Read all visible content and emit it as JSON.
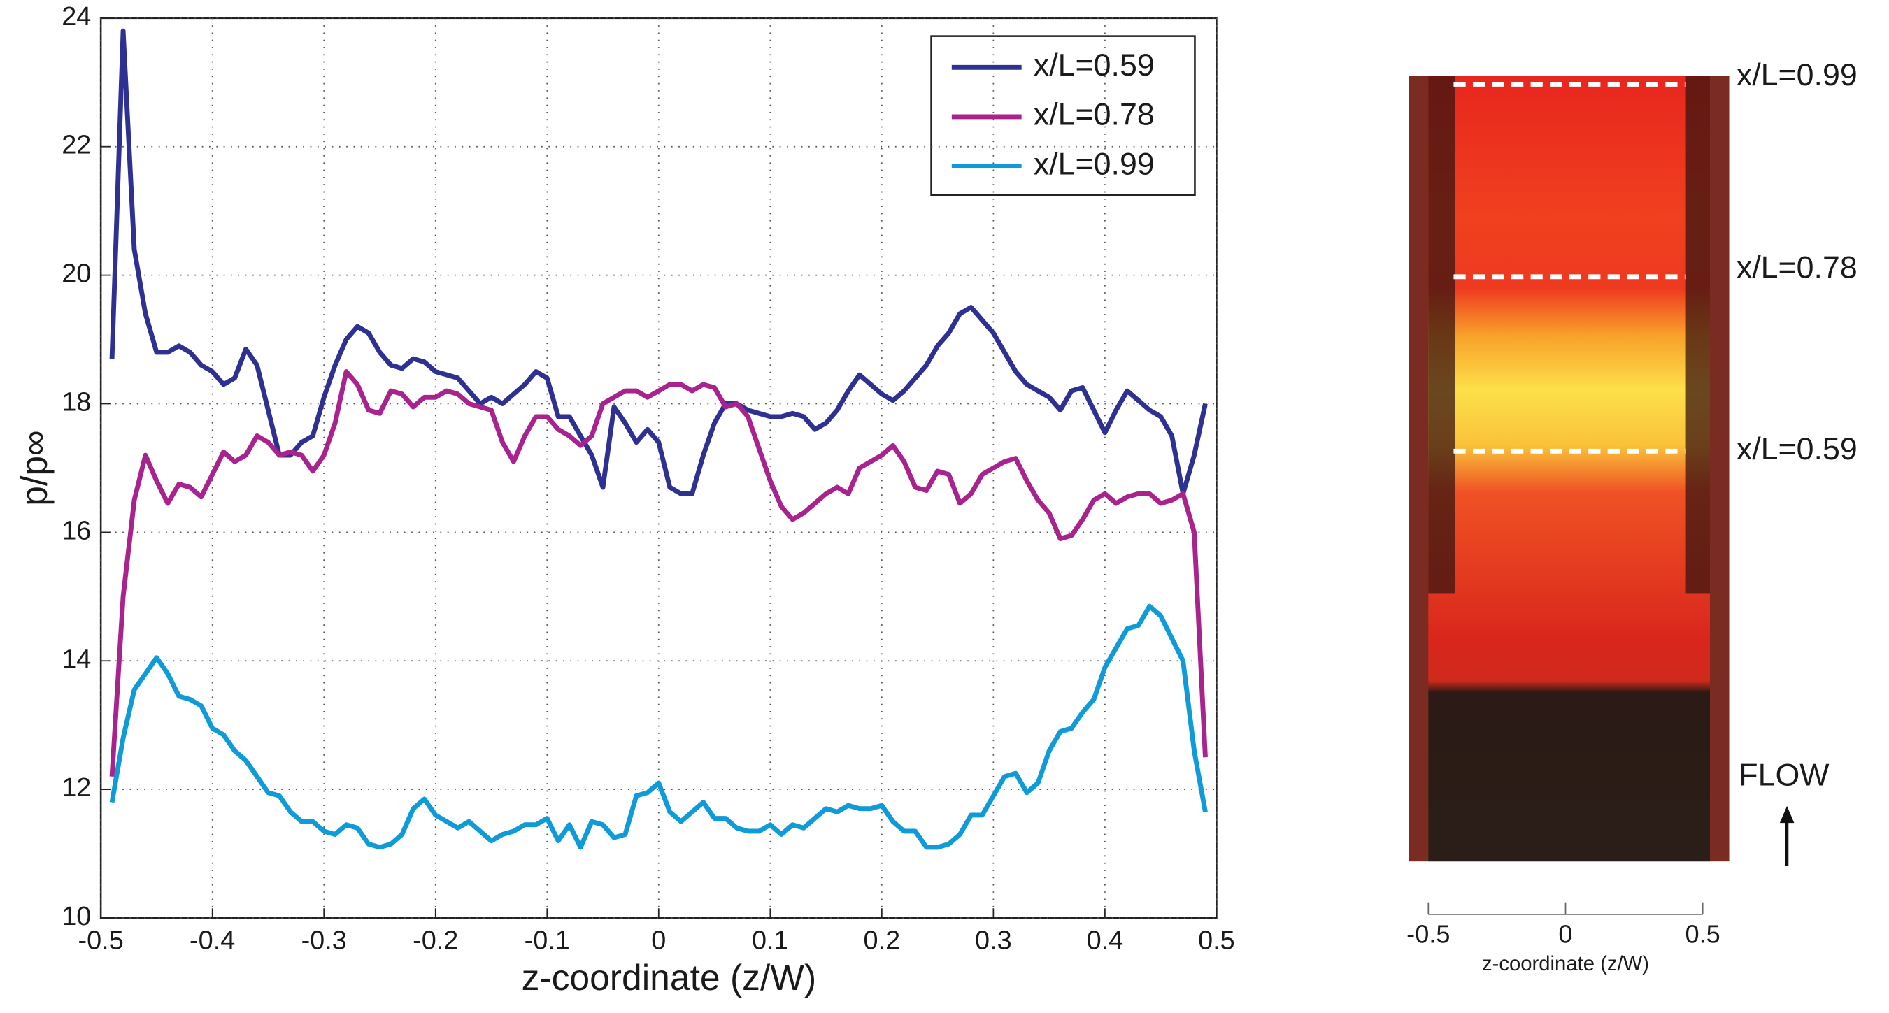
{
  "chart_data": {
    "type": "line",
    "xlabel": "z-coordinate (z/W)",
    "ylabel": "p/p∞",
    "x": [
      -0.49,
      -0.48,
      -0.47,
      -0.46,
      -0.45,
      -0.44,
      -0.43,
      -0.42,
      -0.41,
      -0.4,
      -0.39,
      -0.38,
      -0.37,
      -0.36,
      -0.35,
      -0.34,
      -0.33,
      -0.32,
      -0.31,
      -0.3,
      -0.29,
      -0.28,
      -0.27,
      -0.26,
      -0.25,
      -0.24,
      -0.23,
      -0.22,
      -0.21,
      -0.2,
      -0.19,
      -0.18,
      -0.17,
      -0.16,
      -0.15,
      -0.14,
      -0.13,
      -0.12,
      -0.11,
      -0.1,
      -0.09,
      -0.08,
      -0.07,
      -0.06,
      -0.05,
      -0.04,
      -0.03,
      -0.02,
      -0.01,
      0,
      0.01,
      0.02,
      0.03,
      0.04,
      0.05,
      0.06,
      0.07,
      0.08,
      0.09,
      0.1,
      0.11,
      0.12,
      0.13,
      0.14,
      0.15,
      0.16,
      0.17,
      0.18,
      0.19,
      0.2,
      0.21,
      0.22,
      0.23,
      0.24,
      0.25,
      0.26,
      0.27,
      0.28,
      0.29,
      0.3,
      0.31,
      0.32,
      0.33,
      0.34,
      0.35,
      0.36,
      0.37,
      0.38,
      0.39,
      0.4,
      0.41,
      0.42,
      0.43,
      0.44,
      0.45,
      0.46,
      0.47,
      0.48,
      0.49
    ],
    "series": [
      {
        "name": "x/L=0.59",
        "color": "#2e3192",
        "values": [
          18.7,
          23.8,
          20.4,
          19.4,
          18.8,
          18.8,
          18.9,
          18.8,
          18.6,
          18.5,
          18.3,
          18.4,
          18.85,
          18.6,
          17.9,
          17.2,
          17.2,
          17.4,
          17.5,
          18.1,
          18.6,
          19.0,
          19.2,
          19.1,
          18.8,
          18.6,
          18.55,
          18.7,
          18.65,
          18.5,
          18.45,
          18.4,
          18.2,
          18.0,
          18.1,
          18.0,
          18.15,
          18.3,
          18.5,
          18.4,
          17.8,
          17.8,
          17.5,
          17.2,
          16.7,
          17.95,
          17.7,
          17.4,
          17.6,
          17.4,
          16.7,
          16.6,
          16.6,
          17.2,
          17.7,
          18.0,
          18.0,
          17.9,
          17.85,
          17.8,
          17.8,
          17.85,
          17.8,
          17.6,
          17.7,
          17.9,
          18.2,
          18.45,
          18.3,
          18.15,
          18.05,
          18.2,
          18.4,
          18.6,
          18.9,
          19.1,
          19.4,
          19.5,
          19.3,
          19.1,
          18.8,
          18.5,
          18.3,
          18.2,
          18.1,
          17.9,
          18.2,
          18.25,
          17.9,
          17.55,
          17.9,
          18.2,
          18.05,
          17.9,
          17.8,
          17.5,
          16.6,
          17.2,
          18.0
        ]
      },
      {
        "name": "x/L=0.78",
        "color": "#a9238f",
        "values": [
          12.2,
          15.0,
          16.5,
          17.2,
          16.8,
          16.45,
          16.75,
          16.7,
          16.55,
          16.9,
          17.25,
          17.1,
          17.2,
          17.5,
          17.4,
          17.2,
          17.25,
          17.2,
          16.95,
          17.2,
          17.7,
          18.5,
          18.3,
          17.9,
          17.85,
          18.2,
          18.15,
          17.95,
          18.1,
          18.1,
          18.2,
          18.15,
          18.0,
          17.95,
          17.9,
          17.4,
          17.1,
          17.5,
          17.8,
          17.8,
          17.6,
          17.5,
          17.35,
          17.5,
          18.0,
          18.1,
          18.2,
          18.2,
          18.1,
          18.2,
          18.3,
          18.3,
          18.2,
          18.3,
          18.25,
          17.95,
          18.0,
          17.8,
          17.3,
          16.8,
          16.4,
          16.2,
          16.3,
          16.45,
          16.6,
          16.7,
          16.6,
          17.0,
          17.1,
          17.2,
          17.35,
          17.1,
          16.7,
          16.65,
          16.95,
          16.9,
          16.45,
          16.6,
          16.9,
          17.0,
          17.1,
          17.15,
          16.8,
          16.5,
          16.3,
          15.9,
          15.95,
          16.2,
          16.5,
          16.6,
          16.45,
          16.55,
          16.6,
          16.6,
          16.45,
          16.5,
          16.6,
          16.0,
          12.5
        ]
      },
      {
        "name": "x/L=0.99",
        "color": "#0f9bd7",
        "values": [
          11.8,
          12.8,
          13.55,
          13.8,
          14.05,
          13.8,
          13.45,
          13.4,
          13.3,
          12.95,
          12.85,
          12.6,
          12.45,
          12.2,
          11.95,
          11.9,
          11.65,
          11.5,
          11.5,
          11.35,
          11.3,
          11.45,
          11.4,
          11.15,
          11.1,
          11.15,
          11.3,
          11.7,
          11.85,
          11.6,
          11.5,
          11.4,
          11.5,
          11.35,
          11.2,
          11.3,
          11.35,
          11.45,
          11.45,
          11.55,
          11.2,
          11.45,
          11.1,
          11.5,
          11.45,
          11.25,
          11.3,
          11.9,
          11.95,
          12.1,
          11.65,
          11.5,
          11.65,
          11.8,
          11.55,
          11.55,
          11.4,
          11.35,
          11.35,
          11.45,
          11.3,
          11.45,
          11.4,
          11.55,
          11.7,
          11.65,
          11.75,
          11.7,
          11.7,
          11.75,
          11.5,
          11.35,
          11.35,
          11.1,
          11.1,
          11.15,
          11.3,
          11.6,
          11.6,
          11.9,
          12.2,
          12.25,
          11.95,
          12.1,
          12.6,
          12.9,
          12.95,
          13.2,
          13.4,
          13.9,
          14.2,
          14.5,
          14.55,
          14.85,
          14.7,
          14.35,
          14.0,
          12.6,
          11.65
        ]
      }
    ],
    "xlim": [
      -0.5,
      0.5
    ],
    "xticks": [
      -0.5,
      -0.4,
      -0.3,
      -0.2,
      -0.1,
      0,
      0.1,
      0.2,
      0.3,
      0.4,
      0.5
    ],
    "ylim": [
      10,
      24
    ],
    "yticks": [
      10,
      12,
      14,
      16,
      18,
      20,
      22,
      24
    ],
    "grid": true,
    "legend": "upper right"
  },
  "inset": {
    "line_labels": [
      "x/L=0.99",
      "x/L=0.78",
      "x/L=0.59"
    ],
    "flow_label": "FLOW",
    "xlabel": "z-coordinate (z/W)",
    "xlim": [
      -0.5,
      0.5
    ],
    "xticks": [
      -0.5,
      0,
      0.5
    ]
  }
}
